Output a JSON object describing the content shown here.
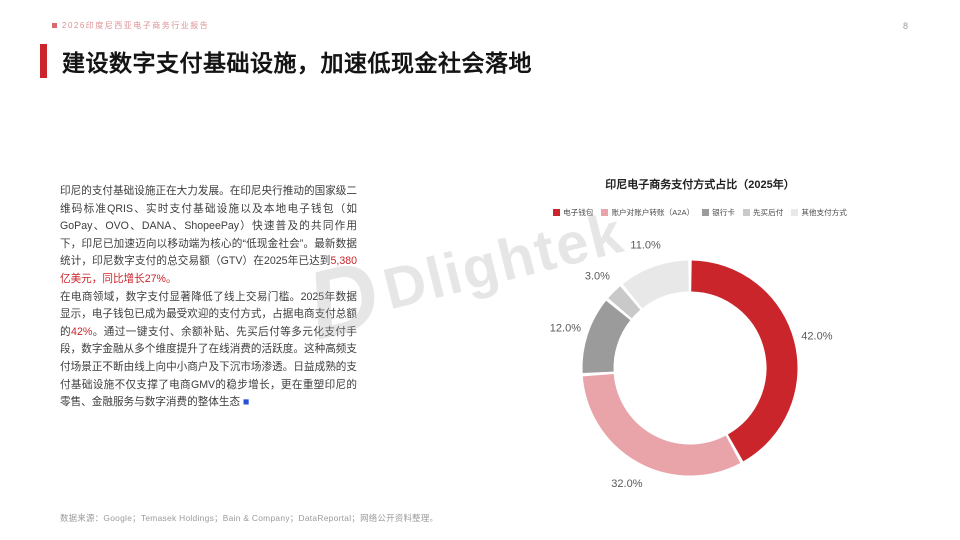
{
  "page": {
    "header": {
      "report_tag": "2026印度尼西亚电子商务行业报告",
      "page_number": "8"
    },
    "title": "建设数字支付基础设施，加速低现金社会落地",
    "body": {
      "highlight_color": "#c9252b",
      "marker_color": "#2951d6",
      "p1_segments": [
        {
          "text": "印尼的支付基础设施正在大力发展。在印尼央行推动的国家级二维码标准QRIS、实时支付基础设施以及本地电子钱包（如GoPay、OVO、DANA、ShopeePay）快速普及的共同作用下，印尼已加速迈向以移动端为核心的“低现金社会”。最新数据统计，印尼数字支付的总交易额（GTV）在2025年已达到",
          "style": "normal"
        },
        {
          "text": "5,380亿美元，同比增长27%。",
          "style": "highlight"
        }
      ],
      "p2_segments": [
        {
          "text": "在电商领域，数字支付显著降低了线上交易门槛。2025年数据显示，电子钱包已成为最受欢迎的支付方式，占据电商支付总额的",
          "style": "normal"
        },
        {
          "text": "42%",
          "style": "highlight"
        },
        {
          "text": "。通过一键支付、余额补贴、先买后付等多元化支付手段，数字金融从多个维度提升了在线消费的活跃度。这种高频支付场景正不断由线上向中小商户及下沉市场渗透。日益成熟的支付基础设施不仅支撑了电商GMV的稳步增长，更在重塑印尼的零售、金融服务与数字消费的整体生态 ",
          "style": "normal"
        },
        {
          "text": "■",
          "style": "marker"
        }
      ]
    },
    "watermark": {
      "logo": "D",
      "text": "Dlightek"
    },
    "footer": "数据来源：Google；Temasek Holdings；Bain & Company；DataReportal；网络公开资料整理。"
  },
  "chart_data": {
    "type": "pie",
    "donut": true,
    "title": "印尼电子商务支付方式占比（2025年）",
    "labels": [
      "电子钱包",
      "账户对账户转账（A2A）",
      "银行卡",
      "先买后付",
      "其他支付方式"
    ],
    "values": [
      42.0,
      32.0,
      12.0,
      3.0,
      11.0
    ],
    "value_labels": [
      "42.0%",
      "32.0%",
      "12.0%",
      "3.0%",
      "11.0%"
    ],
    "colors": [
      "#c9252b",
      "#e8a4a8",
      "#9b9b9b",
      "#c9c9c9",
      "#e8e8e8"
    ],
    "legend_position": "top",
    "start_angle_deg_from_top": 0
  }
}
